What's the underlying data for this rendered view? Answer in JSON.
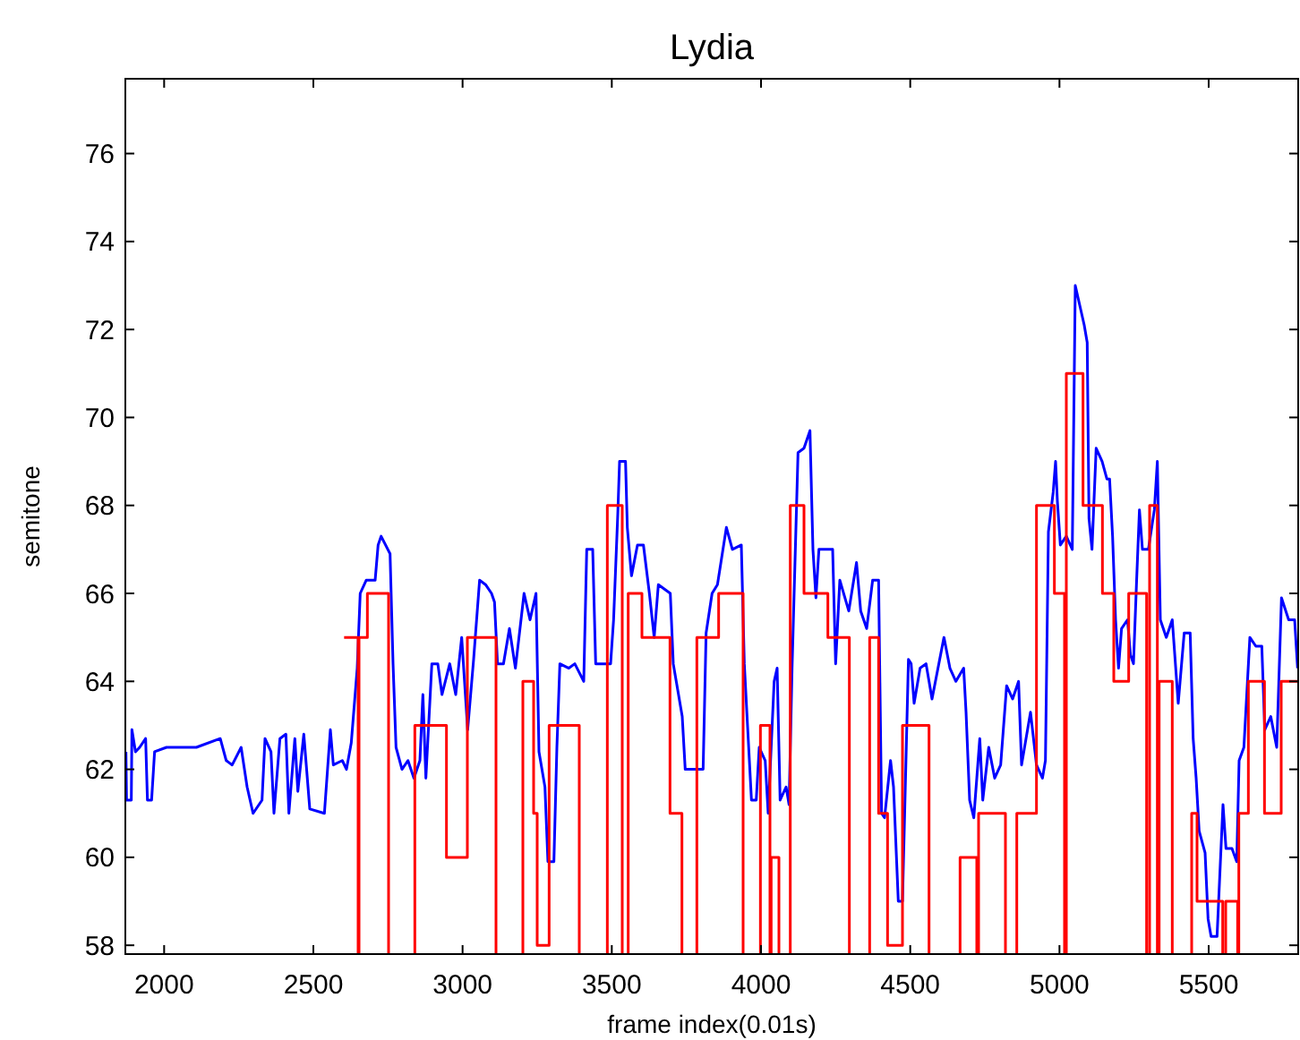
{
  "chart_data": {
    "type": "line",
    "title": "Lydia",
    "xlabel": "frame index(0.01s)",
    "ylabel": "semitone",
    "xlim": [
      1870,
      5800
    ],
    "ylim": [
      57.8,
      77.7
    ],
    "xticks": [
      2000,
      2500,
      3000,
      3500,
      4000,
      4500,
      5000,
      5500
    ],
    "yticks": [
      58,
      60,
      62,
      64,
      66,
      68,
      70,
      72,
      74,
      76
    ],
    "series": [
      {
        "color": "#0000ff",
        "x": [
          1872,
          1874,
          1890,
          1892,
          1904,
          1918,
          1938,
          1944,
          1958,
          1968,
          2008,
          2108,
          2188,
          2208,
          2228,
          2258,
          2278,
          2298,
          2328,
          2338,
          2358,
          2368,
          2388,
          2408,
          2418,
          2438,
          2448,
          2468,
          2488,
          2537,
          2557,
          2567,
          2597,
          2611,
          2627,
          2647,
          2657,
          2677,
          2707,
          2717,
          2727,
          2757,
          2767,
          2777,
          2797,
          2817,
          2837,
          2857,
          2867,
          2877,
          2897,
          2917,
          2931,
          2957,
          2977,
          2997,
          3017,
          3037,
          3057,
          3077,
          3097,
          3107,
          3117,
          3137,
          3157,
          3177,
          3206,
          3226,
          3246,
          3256,
          3276,
          3286,
          3306,
          3316,
          3326,
          3356,
          3376,
          3406,
          3416,
          3436,
          3446,
          3496,
          3506,
          3520,
          3526,
          3546,
          3552,
          3566,
          3586,
          3606,
          3626,
          3642,
          3656,
          3696,
          3706,
          3736,
          3746,
          3776,
          3806,
          3816,
          3836,
          3854,
          3884,
          3904,
          3934,
          3944,
          3954,
          3968,
          3984,
          3994,
          4014,
          4024,
          4044,
          4054,
          4064,
          4084,
          4094,
          4104,
          4124,
          4144,
          4164,
          4174,
          4184,
          4194,
          4240,
          4250,
          4264,
          4294,
          4320,
          4334,
          4354,
          4374,
          4394,
          4404,
          4414,
          4434,
          4444,
          4460,
          4474,
          4494,
          4503,
          4513,
          4533,
          4553,
          4573,
          4613,
          4633,
          4653,
          4679,
          4687,
          4699,
          4713,
          4733,
          4743,
          4763,
          4783,
          4803,
          4823,
          4843,
          4863,
          4873,
          4903,
          4923,
          4943,
          4953,
          4963,
          4979,
          4987,
          4993,
          5003,
          5023,
          5043,
          5053,
          5073,
          5083,
          5093,
          5099,
          5109,
          5123,
          5143,
          5159,
          5168,
          5178,
          5188,
          5198,
          5208,
          5228,
          5238,
          5248,
          5258,
          5268,
          5278,
          5298,
          5318,
          5328,
          5338,
          5358,
          5378,
          5398,
          5418,
          5438,
          5448,
          5458,
          5468,
          5488,
          5498,
          5508,
          5528,
          5548,
          5558,
          5578,
          5594,
          5602,
          5618,
          5638,
          5658,
          5678,
          5688,
          5708,
          5728,
          5744,
          5768,
          5788,
          5798
        ],
        "values": [
          62.4,
          61.3,
          61.3,
          62.9,
          62.4,
          62.5,
          62.7,
          61.3,
          61.3,
          62.4,
          62.5,
          62.5,
          62.7,
          62.2,
          62.1,
          62.5,
          61.6,
          61.0,
          61.3,
          62.7,
          62.4,
          61.0,
          62.7,
          62.8,
          61.0,
          62.7,
          61.5,
          62.8,
          61.1,
          61.0,
          62.9,
          62.1,
          62.2,
          62.0,
          62.6,
          64.3,
          66.0,
          66.3,
          66.3,
          67.1,
          67.3,
          66.9,
          64.4,
          62.5,
          62.0,
          62.2,
          61.8,
          62.2,
          63.7,
          61.8,
          64.4,
          64.4,
          63.7,
          64.4,
          63.7,
          65.0,
          62.9,
          64.5,
          66.3,
          66.2,
          66.0,
          65.8,
          64.4,
          64.4,
          65.2,
          64.3,
          66.0,
          65.4,
          66.0,
          62.4,
          61.6,
          59.9,
          59.9,
          62.5,
          64.4,
          64.3,
          64.4,
          64.0,
          67.0,
          67.0,
          64.4,
          64.4,
          65.4,
          67.8,
          69.0,
          69.0,
          67.5,
          66.4,
          67.1,
          67.1,
          66.0,
          65.0,
          66.2,
          66.0,
          64.4,
          63.2,
          62.0,
          62.0,
          62.0,
          65.1,
          66.0,
          66.2,
          67.5,
          67.0,
          67.1,
          64.4,
          63.1,
          61.3,
          61.3,
          62.5,
          62.2,
          61.0,
          64.0,
          64.3,
          61.3,
          61.6,
          61.2,
          64.3,
          69.2,
          69.3,
          69.7,
          67.0,
          65.9,
          67.0,
          67.0,
          64.4,
          66.3,
          65.6,
          66.7,
          65.6,
          65.2,
          66.3,
          66.3,
          61.0,
          60.9,
          62.2,
          61.6,
          59.0,
          59.0,
          64.5,
          64.4,
          63.5,
          64.3,
          64.4,
          63.6,
          65.0,
          64.3,
          64.0,
          64.3,
          63.3,
          61.3,
          60.9,
          62.7,
          61.3,
          62.5,
          61.8,
          62.1,
          63.9,
          63.6,
          64.0,
          62.1,
          63.3,
          62.1,
          61.8,
          62.2,
          67.4,
          68.3,
          69.0,
          68.1,
          67.1,
          67.3,
          67.0,
          73.0,
          72.4,
          72.1,
          71.7,
          67.7,
          67.0,
          69.3,
          69.0,
          68.6,
          68.6,
          67.3,
          65.4,
          64.3,
          65.2,
          65.4,
          64.6,
          64.4,
          66.2,
          67.9,
          67.0,
          67.0,
          67.9,
          69.0,
          65.4,
          65.0,
          65.4,
          63.5,
          65.1,
          65.1,
          62.7,
          61.8,
          60.6,
          60.1,
          58.6,
          58.2,
          58.2,
          61.2,
          60.2,
          60.2,
          59.9,
          62.2,
          62.5,
          65.0,
          64.8,
          64.8,
          62.9,
          63.2,
          62.5,
          65.9,
          65.4,
          65.4,
          64.3
        ]
      },
      {
        "type": "step",
        "color": "#ff0000",
        "x": [
          2603,
          2650,
          2653,
          2681,
          2752,
          2840,
          2946,
          3016,
          3112,
          3202,
          3238,
          3250,
          3290,
          3391,
          3485,
          3535,
          3555,
          3601,
          3695,
          3735,
          3785,
          3858,
          3940,
          3998,
          4030,
          4034,
          4060,
          4098,
          4144,
          4224,
          4296,
          4364,
          4394,
          4424,
          4474,
          4563,
          4667,
          4723,
          4729,
          4819,
          4857,
          4923,
          4983,
          5017,
          5023,
          5079,
          5144,
          5182,
          5232,
          5292,
          5302,
          5328,
          5334,
          5378,
          5443,
          5461,
          5547,
          5557,
          5597,
          5601,
          5633,
          5687,
          5743,
          5800
        ],
        "values": [
          65,
          null,
          65,
          66,
          null,
          63,
          60,
          65,
          null,
          64,
          61,
          58,
          63,
          null,
          68,
          null,
          66,
          65,
          61,
          null,
          65,
          66,
          null,
          63,
          null,
          60,
          null,
          68,
          66,
          65,
          null,
          65,
          61,
          58,
          63,
          null,
          60,
          null,
          61,
          null,
          61,
          68,
          66,
          null,
          71,
          68,
          66,
          64,
          66,
          null,
          68,
          null,
          64,
          null,
          61,
          59,
          null,
          59,
          null,
          61,
          64,
          61,
          64,
          64
        ]
      }
    ]
  }
}
